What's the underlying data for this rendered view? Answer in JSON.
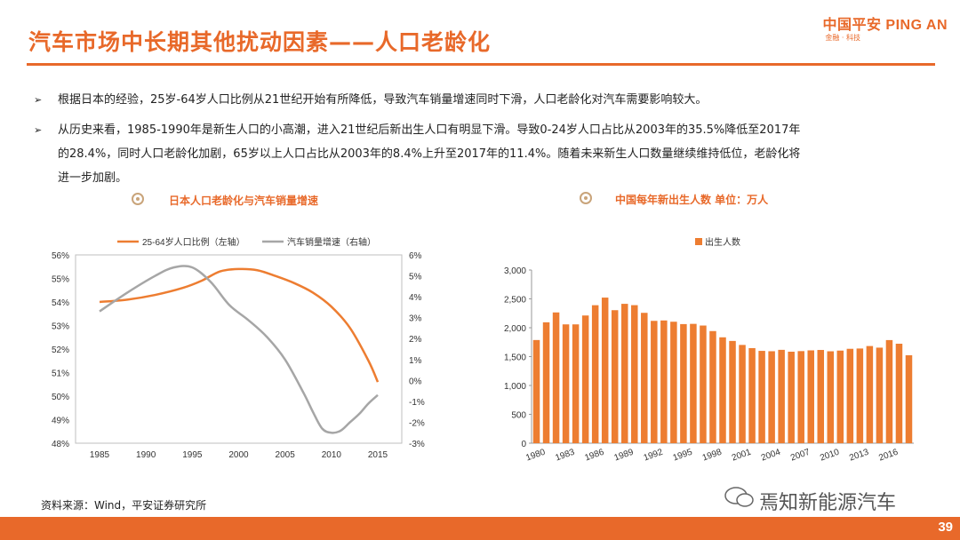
{
  "header": {
    "title": "汽车市场中长期其他扰动因素——人口老龄化",
    "logo_main": "中国平安 PING AN",
    "logo_sub": "金融 · 科技"
  },
  "bullets": [
    {
      "line1": "根据日本的经验，25岁-64岁人口比例从21世纪开始有所降低，导致汽车销量增速同时下滑，人口老龄化对汽车需要影响较大。"
    },
    {
      "line1": "从历史来看，1985-1990年是新生人口的小高潮，进入21世纪后新出生人口有明显下滑。导致0-24岁人口占比从2003年的35.5%降低至2017年",
      "line2": "的28.4%，同时人口老龄化加剧，65岁以上人口占比从2003年的8.4%上升至2017年的11.4%。随着未来新生人口数量继续维持低位，老龄化将",
      "line3": "进一步加剧。"
    }
  ],
  "chart_titles": {
    "left": "日本人口老龄化与汽车销量增速",
    "right": "中国每年新出生人数  单位：万人"
  },
  "chart_data": [
    {
      "type": "line",
      "title": "日本人口老龄化与汽车销量增速",
      "x": [
        1985,
        1990,
        1995,
        2000,
        2005,
        2010,
        2015
      ],
      "xticks": [
        "1985",
        "1990",
        "1995",
        "2000",
        "2005",
        "2010",
        "2015"
      ],
      "series": [
        {
          "name": "25-64岁人口比例（左轴）",
          "axis": "left",
          "color": "#ED7D31",
          "x": [
            1985,
            1988,
            1991,
            1994,
            1996,
            1998,
            2000,
            2002,
            2004,
            2006,
            2008,
            2010,
            2012,
            2014,
            2015
          ],
          "values": [
            54.0,
            54.1,
            54.3,
            54.6,
            54.9,
            55.3,
            55.4,
            55.35,
            55.1,
            54.8,
            54.4,
            53.8,
            52.9,
            51.5,
            50.6
          ]
        },
        {
          "name": "汽车销量增速（右轴）",
          "axis": "right",
          "color": "#A6A6A6",
          "x": [
            1985,
            1988,
            1991,
            1993,
            1995,
            1997,
            1999,
            2001,
            2003,
            2005,
            2007,
            2008,
            2009,
            2010,
            2011,
            2012,
            2013,
            2014,
            2015
          ],
          "values": [
            3.3,
            4.2,
            5.0,
            5.4,
            5.4,
            4.7,
            3.6,
            2.9,
            2.1,
            1.0,
            -0.6,
            -1.5,
            -2.3,
            -2.5,
            -2.4,
            -2.0,
            -1.6,
            -1.1,
            -0.7
          ]
        }
      ],
      "yleft": {
        "ylim": [
          48,
          56
        ],
        "ticks": [
          "48%",
          "49%",
          "50%",
          "51%",
          "52%",
          "53%",
          "54%",
          "55%",
          "56%"
        ]
      },
      "yright": {
        "ylim": [
          -3,
          6
        ],
        "ticks": [
          "-3%",
          "-2%",
          "-1%",
          "0%",
          "1%",
          "2%",
          "3%",
          "4%",
          "5%",
          "6%"
        ]
      }
    },
    {
      "type": "bar",
      "title": "中国每年新出生人数 单位：万人",
      "legend": "出生人数",
      "color": "#ED7D31",
      "categories": [
        1980,
        1981,
        1982,
        1983,
        1984,
        1985,
        1986,
        1987,
        1988,
        1989,
        1990,
        1991,
        1992,
        1993,
        1994,
        1995,
        1996,
        1997,
        1998,
        1999,
        2000,
        2001,
        2002,
        2003,
        2004,
        2005,
        2006,
        2007,
        2008,
        2009,
        2010,
        2011,
        2012,
        2013,
        2014,
        2015,
        2016,
        2017,
        2018
      ],
      "values": [
        1787,
        2094,
        2265,
        2058,
        2058,
        2212,
        2390,
        2522,
        2304,
        2414,
        2391,
        2258,
        2119,
        2126,
        2104,
        2063,
        2067,
        2038,
        1942,
        1834,
        1771,
        1702,
        1647,
        1599,
        1593,
        1617,
        1585,
        1595,
        1608,
        1615,
        1592,
        1604,
        1635,
        1640,
        1683,
        1655,
        1786,
        1723,
        1523
      ],
      "xticks": [
        "1980",
        "1983",
        "1986",
        "1989",
        "1992",
        "1995",
        "1998",
        "2001",
        "2004",
        "2007",
        "2010",
        "2013",
        "2016"
      ],
      "ylim": [
        0,
        3000
      ],
      "yticks": [
        "0",
        "500",
        "1,000",
        "1,500",
        "2,000",
        "2,500",
        "3,000"
      ]
    }
  ],
  "footer": {
    "source": "资料来源：Wind，平安证券研究所",
    "watermark": "焉知新能源汽车",
    "page_number": "39"
  }
}
